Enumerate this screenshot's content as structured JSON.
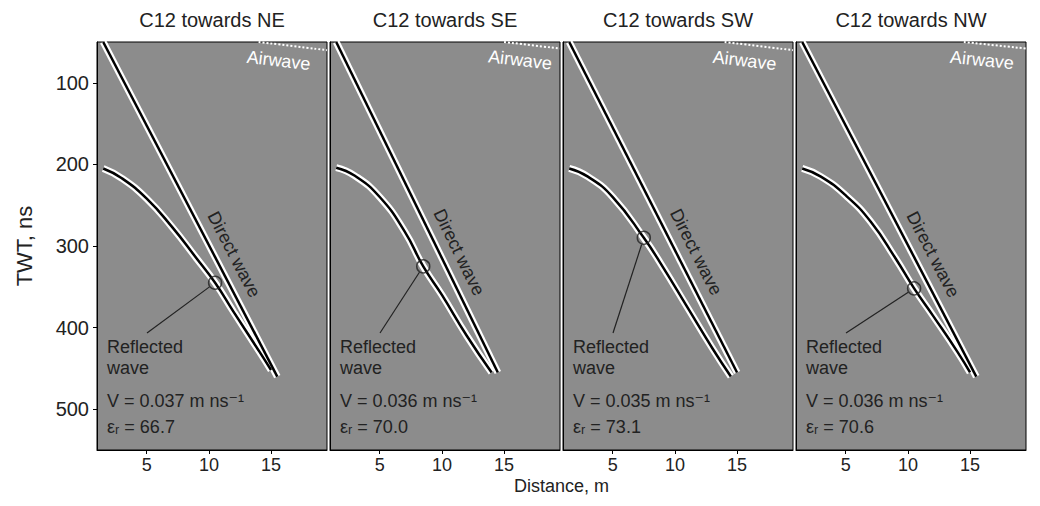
{
  "chart_data": {
    "type": "line",
    "xlabel": "Distance, m",
    "ylabel": "TWT, ns",
    "xlim": [
      1,
      19.5
    ],
    "xticks": [
      5,
      10,
      15
    ],
    "ylim": [
      50,
      550
    ],
    "yticks": [
      100,
      200,
      300,
      400,
      500
    ],
    "panels": [
      {
        "title": "C12 towards NE",
        "series": [
          {
            "name": "Airwave",
            "color": "#ffffff",
            "line_style": "dotted",
            "x": [
              14,
              19.5
            ],
            "values": [
              50,
              60
            ]
          },
          {
            "name": "Direct wave",
            "color": "#000000",
            "line_style": "solid",
            "x": [
              1.5,
              15.5
            ],
            "values": [
              50,
              460
            ]
          },
          {
            "name": "Reflected wave",
            "color": "#000000",
            "line_style": "solid",
            "x": [
              1.5,
              3,
              5,
              7,
              9,
              10.5,
              12,
              14,
              15
            ],
            "values": [
              205,
              217,
              242,
              276,
              315,
              345,
              381,
              428,
              452
            ],
            "pick": {
              "x": 10.5,
              "value": 345,
              "marker": "circle"
            }
          }
        ],
        "annotations": [
          "V = 0.037 m ns⁻¹",
          "εᵣ = 66.7"
        ]
      },
      {
        "title": "C12 towards SE",
        "tick_labels": "x",
        "series": [
          {
            "name": "Airwave",
            "color": "#ffffff",
            "line_style": "dotted",
            "x": [
              15,
              19.5
            ],
            "values": [
              50,
              58
            ]
          },
          {
            "name": "Direct wave",
            "color": "#000000",
            "line_style": "solid",
            "x": [
              1.5,
              14.5
            ],
            "values": [
              50,
              455
            ]
          },
          {
            "name": "Reflected wave",
            "color": "#000000",
            "line_style": "solid",
            "x": [
              1.5,
              3,
              5,
              7,
              8.5,
              10,
              12,
              14
            ],
            "values": [
              204,
              214,
              240,
              282,
              325,
              360,
              410,
              455
            ],
            "pick": {
              "x": 8.5,
              "value": 325,
              "marker": "circle"
            }
          }
        ],
        "annotations": [
          "V = 0.036 m ns⁻¹",
          "εᵣ = 70.0"
        ]
      },
      {
        "title": "C12 towards SW",
        "tick_labels": "x",
        "series": [
          {
            "name": "Airwave",
            "color": "#ffffff",
            "line_style": "dotted",
            "x": [
              14,
              19.5
            ],
            "values": [
              50,
              60
            ]
          },
          {
            "name": "Direct wave",
            "color": "#000000",
            "line_style": "solid",
            "x": [
              1.5,
              15
            ],
            "values": [
              50,
              455
            ]
          },
          {
            "name": "Reflected wave",
            "color": "#000000",
            "line_style": "solid",
            "x": [
              1.5,
              3,
              5,
              7.5,
              9,
              11,
              13,
              14.5
            ],
            "values": [
              205,
              215,
              240,
              290,
              325,
              375,
              425,
              460
            ],
            "pick": {
              "x": 7.5,
              "value": 290,
              "marker": "circle"
            }
          }
        ],
        "annotations": [
          "V = 0.035 m ns⁻¹",
          "εᵣ = 73.1"
        ]
      },
      {
        "title": "C12 towards NW",
        "tick_labels": "x",
        "series": [
          {
            "name": "Airwave",
            "color": "#ffffff",
            "line_style": "dotted",
            "x": [
              14.5,
              19.5
            ],
            "values": [
              50,
              58
            ]
          },
          {
            "name": "Direct wave",
            "color": "#000000",
            "line_style": "solid",
            "x": [
              1.5,
              15.5
            ],
            "values": [
              50,
              460
            ]
          },
          {
            "name": "Reflected wave",
            "color": "#000000",
            "line_style": "solid",
            "x": [
              1.5,
              3,
              5,
              7,
              9,
              10.5,
              12,
              14,
              15
            ],
            "values": [
              205,
              215,
              238,
              270,
              315,
              352,
              385,
              430,
              455
            ],
            "pick": {
              "x": 10.5,
              "value": 352,
              "marker": "circle"
            }
          }
        ],
        "annotations": [
          "V = 0.036 m ns⁻¹",
          "εᵣ = 70.6"
        ]
      }
    ]
  }
}
